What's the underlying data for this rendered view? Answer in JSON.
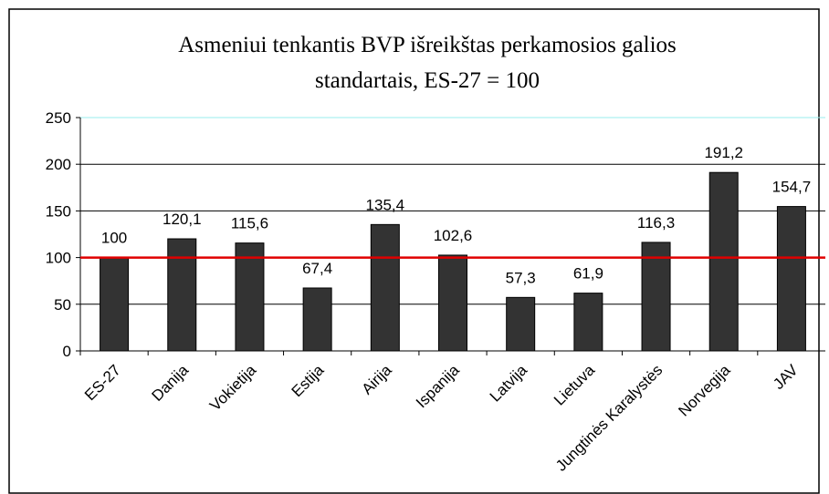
{
  "chart_data": {
    "type": "bar",
    "title": [
      "Asmeniui tenkantis BVP išreikštas perkamosios galios",
      "standartais, ES-27 = 100"
    ],
    "categories": [
      "ES-27",
      "Danija",
      "Vokietija",
      "Estija",
      "Airija",
      "Ispanija",
      "Latvija",
      "Lietuva",
      "Jungtinės Karalystės",
      "Norvegija",
      "JAV"
    ],
    "values": [
      100,
      120.1,
      115.6,
      67.4,
      135.4,
      102.6,
      57.3,
      61.9,
      116.3,
      191.2,
      154.7
    ],
    "value_labels": [
      "100",
      "120,1",
      "115,6",
      "67,4",
      "135,4",
      "102,6",
      "57,3",
      "61,9",
      "116,3",
      "191,2",
      "154,7"
    ],
    "color": "#333333",
    "reference_line": {
      "value": 100,
      "color": "#e00000"
    },
    "ylim": [
      0,
      250
    ],
    "yticks": [
      0,
      50,
      100,
      150,
      200,
      250
    ],
    "grid": true
  }
}
